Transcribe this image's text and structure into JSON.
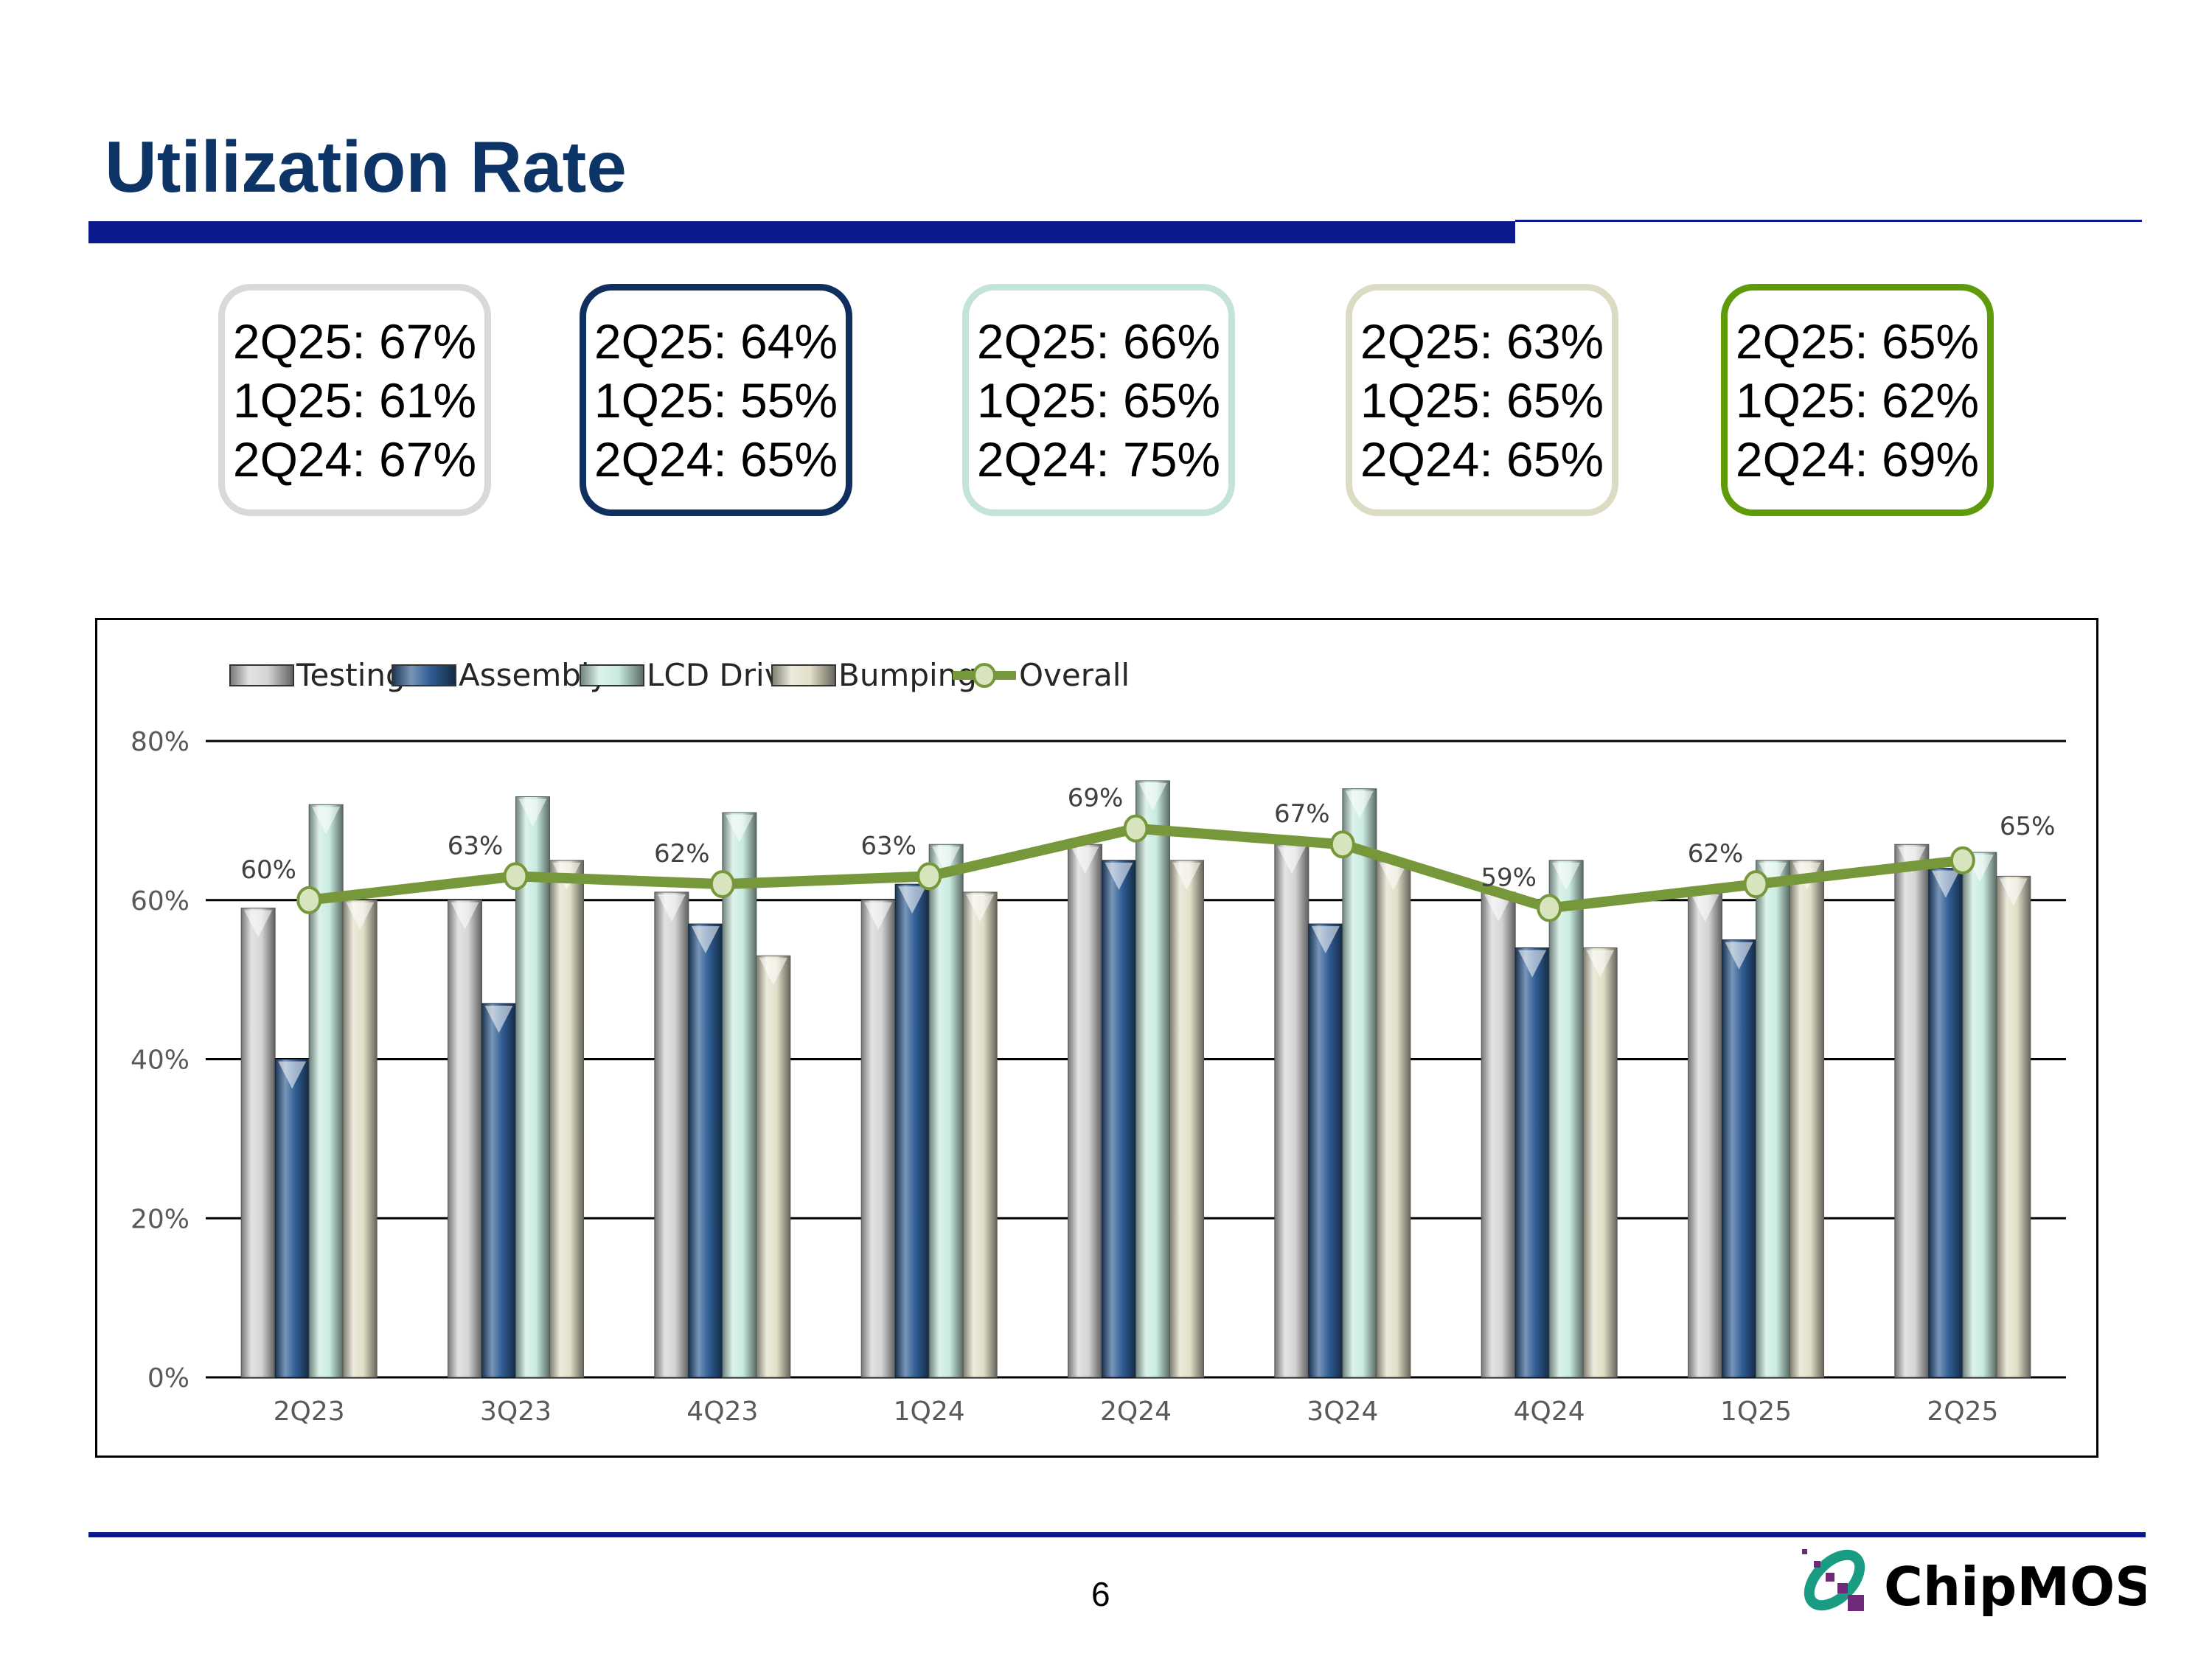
{
  "header": {
    "title": "Utilization Rate"
  },
  "kpi_boxes": [
    {
      "segment": "Testing",
      "border_color": "#d9d9d9",
      "lines": [
        "2Q25: 67%",
        "1Q25: 61%",
        "2Q24: 67%"
      ]
    },
    {
      "segment": "Assembly",
      "border_color": "#0f2f5f",
      "lines": [
        "2Q25: 64%",
        "1Q25: 55%",
        "2Q24: 65%"
      ]
    },
    {
      "segment": "LCD Driver",
      "border_color": "#c4e4da",
      "lines": [
        "2Q25: 66%",
        "1Q25: 65%",
        "2Q24: 75%"
      ]
    },
    {
      "segment": "Bumping",
      "border_color": "#dcdcc4",
      "lines": [
        "2Q25: 63%",
        "1Q25: 65%",
        "2Q24: 65%"
      ]
    },
    {
      "segment": "Overall",
      "border_color": "#5e9a0a",
      "lines": [
        "2Q25: 65%",
        "1Q25: 62%",
        "2Q24: 69%"
      ]
    }
  ],
  "chart_data": {
    "type": "bar",
    "categories": [
      "2Q23",
      "3Q23",
      "4Q23",
      "1Q24",
      "2Q24",
      "3Q24",
      "4Q24",
      "1Q25",
      "2Q25"
    ],
    "ylim": [
      0,
      80
    ],
    "yticks": [
      "0%",
      "20%",
      "40%",
      "60%",
      "80%"
    ],
    "grid": true,
    "legend_position": "top",
    "series": [
      {
        "name": "Testing",
        "kind": "bar",
        "color": "#d4d4d4",
        "values": [
          59,
          60,
          61,
          60,
          67,
          67,
          61,
          61,
          67
        ]
      },
      {
        "name": "Assembly",
        "kind": "bar",
        "color": "#2f5d94",
        "values": [
          40,
          47,
          57,
          62,
          65,
          57,
          54,
          55,
          64
        ]
      },
      {
        "name": "LCD Driver",
        "kind": "bar",
        "color": "#c9ebe0",
        "values": [
          72,
          73,
          71,
          67,
          75,
          74,
          65,
          65,
          66
        ]
      },
      {
        "name": "Bumping",
        "kind": "bar",
        "color": "#e2dfc8",
        "values": [
          60,
          65,
          53,
          61,
          65,
          65,
          54,
          65,
          63
        ]
      },
      {
        "name": "Overall",
        "kind": "line",
        "color": "#76983a",
        "values": [
          60,
          63,
          62,
          63,
          69,
          67,
          59,
          62,
          65
        ],
        "labels": [
          "60%",
          "63%",
          "62%",
          "63%",
          "69%",
          "67%",
          "59%",
          "62%",
          "65%"
        ]
      }
    ]
  },
  "footer": {
    "page_number": "6",
    "logo_text": "ChipMOS"
  }
}
